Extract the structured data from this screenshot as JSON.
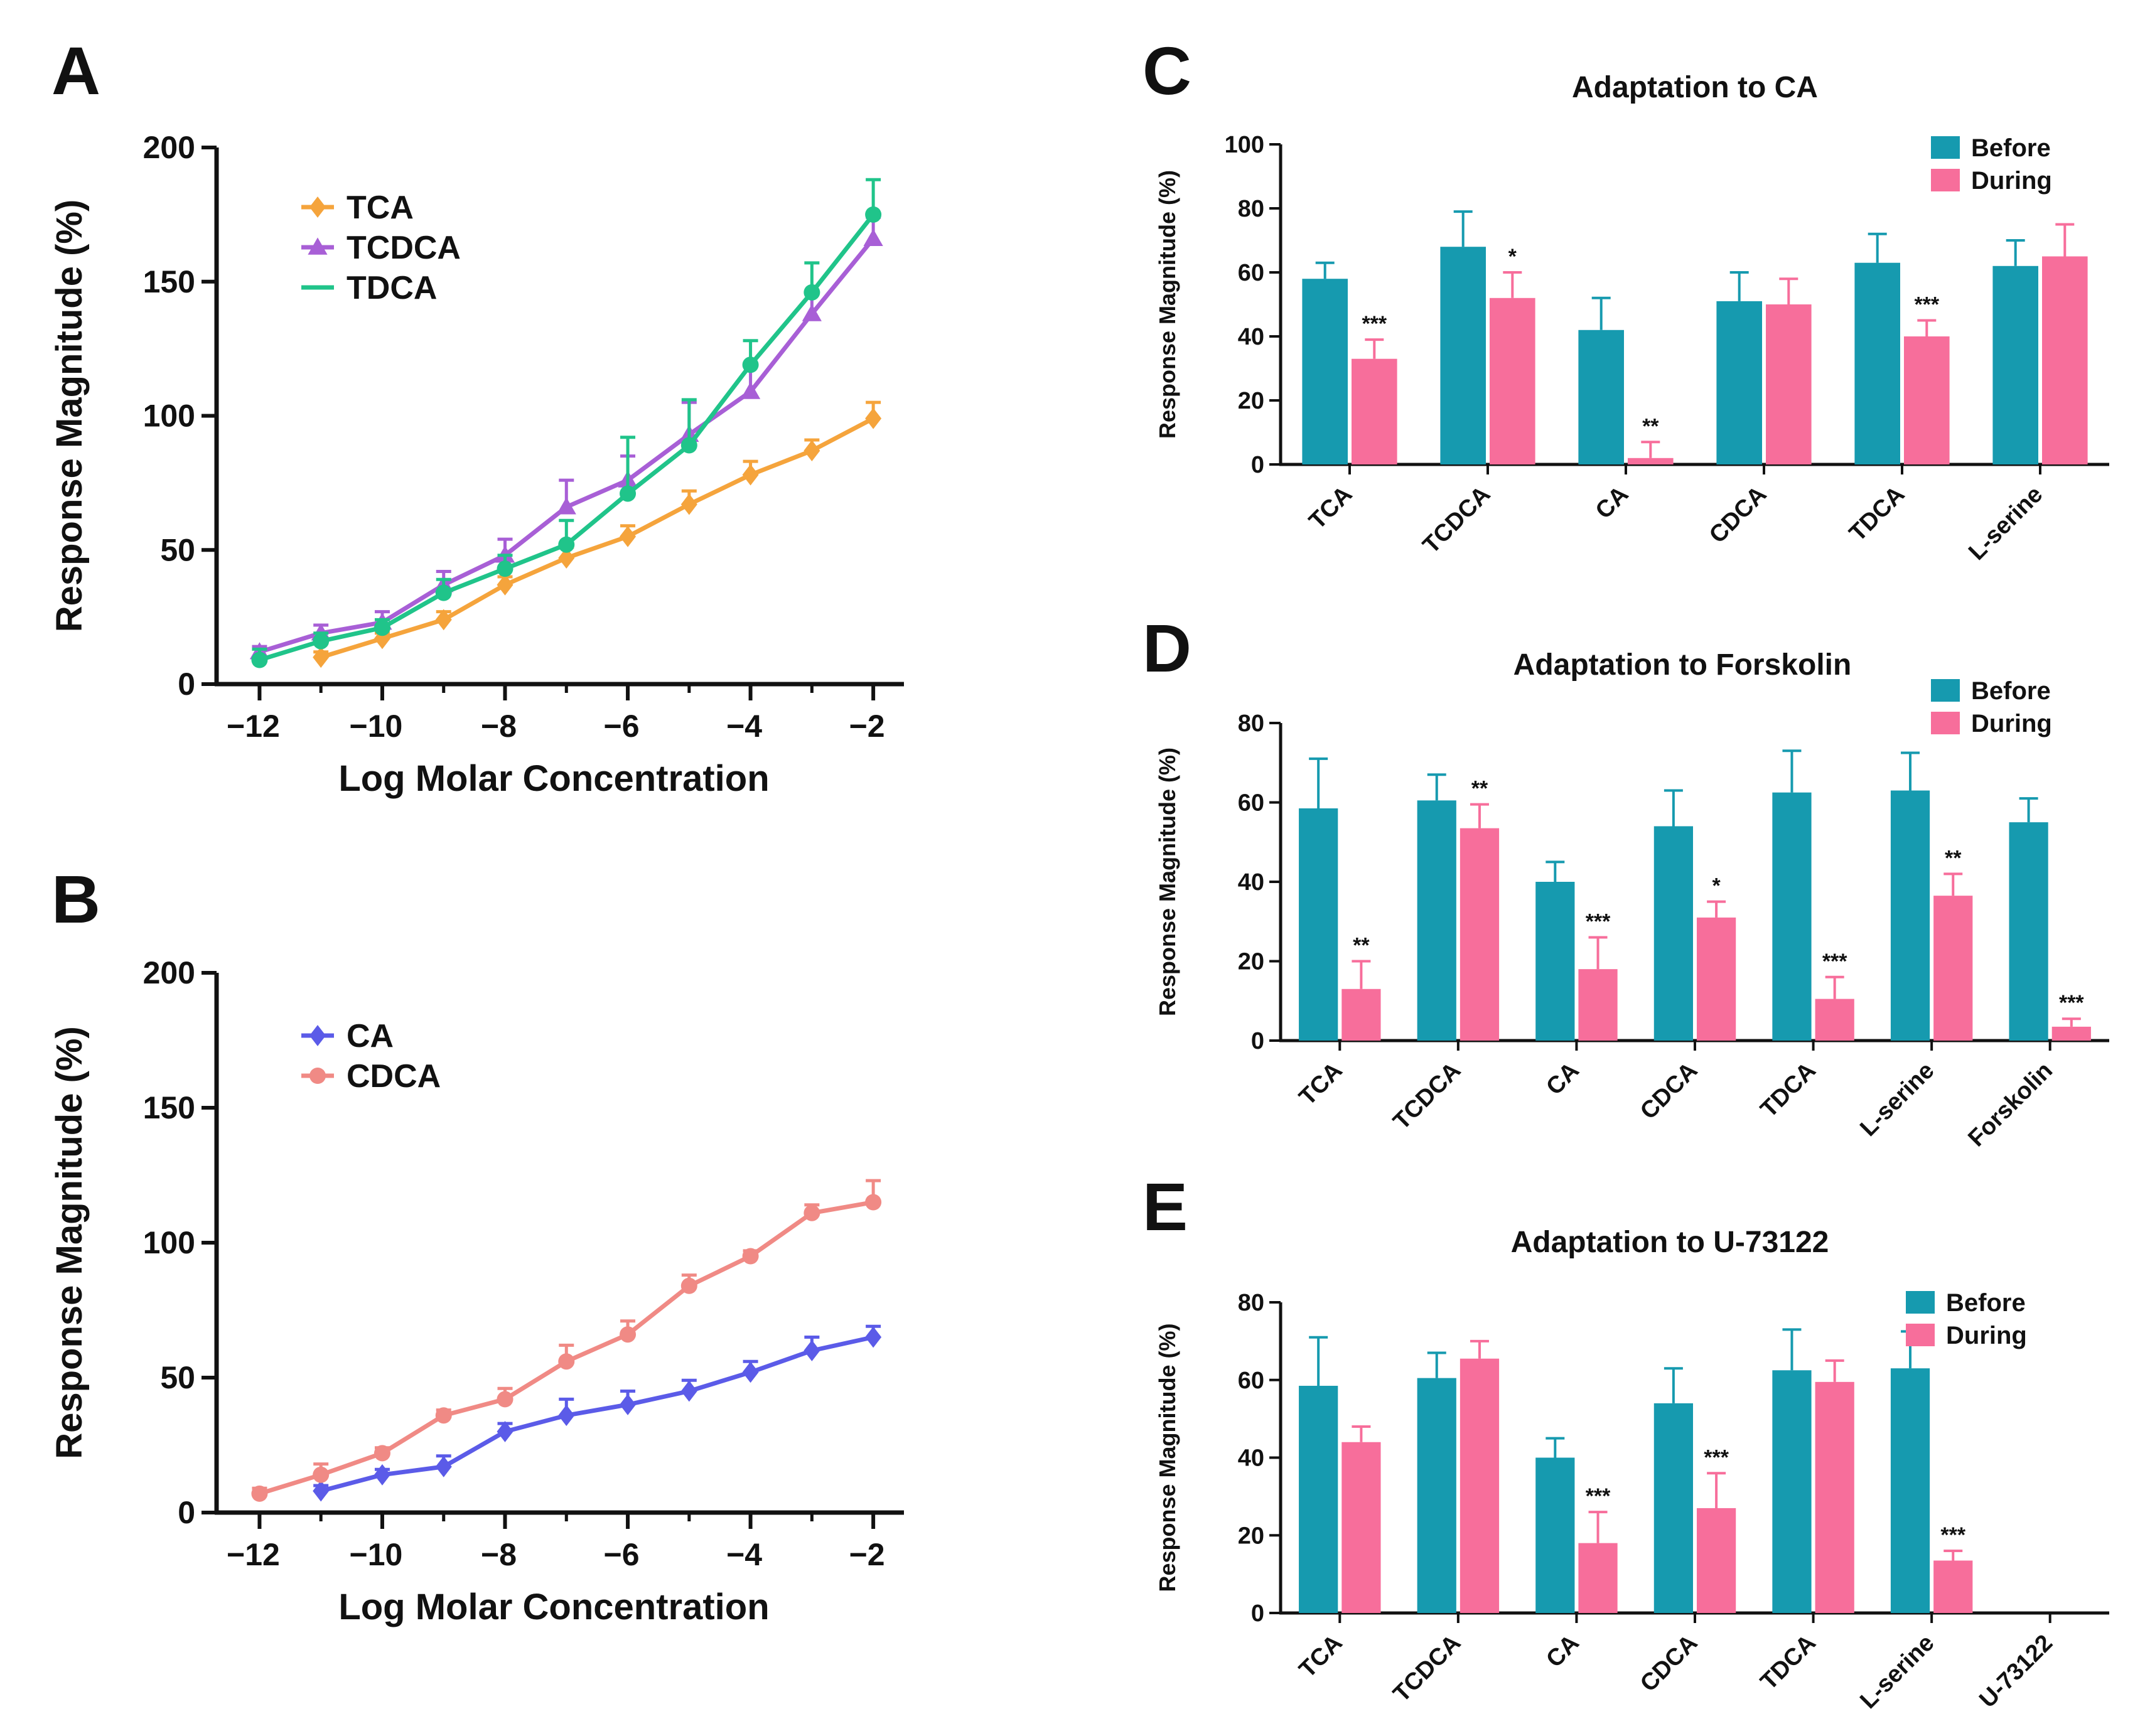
{
  "colors": {
    "TCA": "#F5A43C",
    "TCDCA": "#A85FD6",
    "TDCA": "#20C48A",
    "CA": "#5B5BE8",
    "CDCA": "#F08A85",
    "before": "#169AAF",
    "during": "#F76E9B",
    "axis": "#111111"
  },
  "chart_data": [
    {
      "panel": "A",
      "type": "line",
      "title": "",
      "xlabel": "Log Molar Concentration",
      "ylabel": "Response Magnitude (%)",
      "xlim": [
        -12.7,
        -1.5
      ],
      "ylim": [
        0,
        200
      ],
      "xticks": [
        -12,
        -10,
        -8,
        -6,
        -4,
        -2
      ],
      "xtick_labels": [
        "−12",
        "−10",
        "−8",
        "−6",
        "−4",
        "−2"
      ],
      "yticks": [
        0,
        50,
        100,
        150,
        200
      ],
      "ytick_labels": [
        "0",
        "50",
        "100",
        "150",
        "200"
      ],
      "legend_position": "top-left",
      "series": [
        {
          "name": "TCA",
          "marker": "diamond",
          "x": [
            -11,
            -10,
            -9,
            -8,
            -7,
            -6,
            -5,
            -4,
            -3,
            -2
          ],
          "y": [
            10,
            17,
            24,
            37,
            47,
            55,
            67,
            78,
            87,
            99
          ],
          "err": [
            2,
            2,
            3,
            3,
            4,
            4,
            5,
            5,
            4,
            6
          ]
        },
        {
          "name": "TCDCA",
          "marker": "triangle",
          "x": [
            -12,
            -11,
            -10,
            -9,
            -8,
            -7,
            -6,
            -5,
            -4,
            -3,
            -2
          ],
          "y": [
            12,
            19,
            23,
            37,
            48,
            66,
            76,
            93,
            109,
            138,
            166
          ],
          "err": [
            2,
            3,
            4,
            5,
            6,
            10,
            9,
            12,
            10,
            8,
            8
          ]
        },
        {
          "name": "TDCA",
          "marker": "circle",
          "x": [
            -12,
            -11,
            -10,
            -9,
            -8,
            -7,
            -6,
            -5,
            -4,
            -3,
            -2
          ],
          "y": [
            9,
            16,
            21,
            34,
            43,
            52,
            71,
            89,
            119,
            146,
            175
          ],
          "err": [
            4,
            3,
            3,
            5,
            5,
            9,
            21,
            17,
            9,
            11,
            13
          ]
        }
      ]
    },
    {
      "panel": "B",
      "type": "line",
      "title": "",
      "xlabel": "Log Molar Concentration",
      "ylabel": "Response Magnitude (%)",
      "xlim": [
        -12.7,
        -1.5
      ],
      "ylim": [
        0,
        200
      ],
      "xticks": [
        -12,
        -10,
        -8,
        -6,
        -4,
        -2
      ],
      "xtick_labels": [
        "−12",
        "−10",
        "−8",
        "−6",
        "−4",
        "−2"
      ],
      "yticks": [
        0,
        50,
        100,
        150,
        200
      ],
      "ytick_labels": [
        "0",
        "50",
        "100",
        "150",
        "200"
      ],
      "legend_position": "top-left",
      "series": [
        {
          "name": "CA",
          "marker": "diamond",
          "x": [
            -11,
            -10,
            -9,
            -8,
            -7,
            -6,
            -5,
            -4,
            -3,
            -2
          ],
          "y": [
            8,
            14,
            17,
            30,
            36,
            40,
            45,
            52,
            60,
            65
          ],
          "err": [
            2,
            2,
            4,
            3,
            6,
            5,
            4,
            4,
            5,
            4
          ]
        },
        {
          "name": "CDCA",
          "marker": "circle",
          "x": [
            -12,
            -11,
            -10,
            -9,
            -8,
            -7,
            -6,
            -5,
            -4,
            -3,
            -2
          ],
          "y": [
            7,
            14,
            22,
            36,
            42,
            56,
            66,
            84,
            95,
            111,
            115
          ],
          "err": [
            2,
            4,
            2,
            2,
            4,
            6,
            5,
            4,
            2,
            3,
            8
          ]
        }
      ]
    },
    {
      "panel": "C",
      "type": "bar",
      "title": "Adaptation to CA",
      "xlabel": "",
      "ylabel": "Response Magnitude (%)",
      "ylim": [
        0,
        100
      ],
      "yticks": [
        0,
        20,
        40,
        60,
        80,
        100
      ],
      "ytick_labels": [
        "0",
        "20",
        "40",
        "60",
        "80",
        "100"
      ],
      "legend_position": "top-right",
      "categories": [
        "TCA",
        "TCDCA",
        "CA",
        "CDCA",
        "TDCA",
        "L-serine"
      ],
      "series": [
        {
          "name": "Before",
          "values": [
            58,
            68,
            42,
            51,
            63,
            62
          ],
          "err": [
            5,
            11,
            10,
            9,
            9,
            8
          ]
        },
        {
          "name": "During",
          "values": [
            33,
            52,
            2,
            50,
            40,
            65
          ],
          "err": [
            6,
            8,
            5,
            8,
            5,
            10
          ]
        }
      ],
      "significance": [
        "***",
        "*",
        "**",
        "",
        "***",
        ""
      ]
    },
    {
      "panel": "D",
      "type": "bar",
      "title": "Adaptation to Forskolin",
      "xlabel": "",
      "ylabel": "Response Magnitude (%)",
      "ylim": [
        0,
        80
      ],
      "yticks": [
        0,
        20,
        40,
        60,
        80
      ],
      "ytick_labels": [
        "0",
        "20",
        "40",
        "60",
        "80"
      ],
      "legend_position": "top-right",
      "categories": [
        "TCA",
        "TCDCA",
        "CA",
        "CDCA",
        "TDCA",
        "L-serine",
        "Forskolin"
      ],
      "series": [
        {
          "name": "Before",
          "values": [
            58.5,
            60.5,
            40,
            54,
            62.5,
            63,
            55
          ],
          "err": [
            12.5,
            6.5,
            5,
            9,
            10.5,
            9.5,
            6
          ]
        },
        {
          "name": "During",
          "values": [
            13,
            53.5,
            18,
            31,
            10.5,
            36.5,
            3.5
          ],
          "err": [
            7,
            6,
            8,
            4,
            5.5,
            5.5,
            2
          ]
        }
      ],
      "significance": [
        "**",
        "**",
        "***",
        "*",
        "***",
        "**",
        "***"
      ]
    },
    {
      "panel": "E",
      "type": "bar",
      "title": "Adaptation to U-73122",
      "xlabel": "",
      "ylabel": "Response Magnitude (%)",
      "ylim": [
        0,
        80
      ],
      "yticks": [
        0,
        20,
        40,
        60,
        80
      ],
      "ytick_labels": [
        "0",
        "20",
        "40",
        "60",
        "80"
      ],
      "legend_position": "top-right",
      "categories": [
        "TCA",
        "TCDCA",
        "CA",
        "CDCA",
        "TDCA",
        "L-serine",
        "U-73122"
      ],
      "series": [
        {
          "name": "Before",
          "values": [
            58.5,
            60.5,
            40,
            54,
            62.5,
            63,
            null
          ],
          "err": [
            12.5,
            6.5,
            5,
            9,
            10.5,
            9.5,
            null
          ]
        },
        {
          "name": "During",
          "values": [
            44,
            65.5,
            18,
            27,
            59.5,
            13.5,
            null
          ],
          "err": [
            4,
            4.5,
            8,
            9,
            5.5,
            2.5,
            null
          ]
        }
      ],
      "significance": [
        "",
        "",
        "***",
        "***",
        "",
        "***",
        ""
      ]
    }
  ]
}
